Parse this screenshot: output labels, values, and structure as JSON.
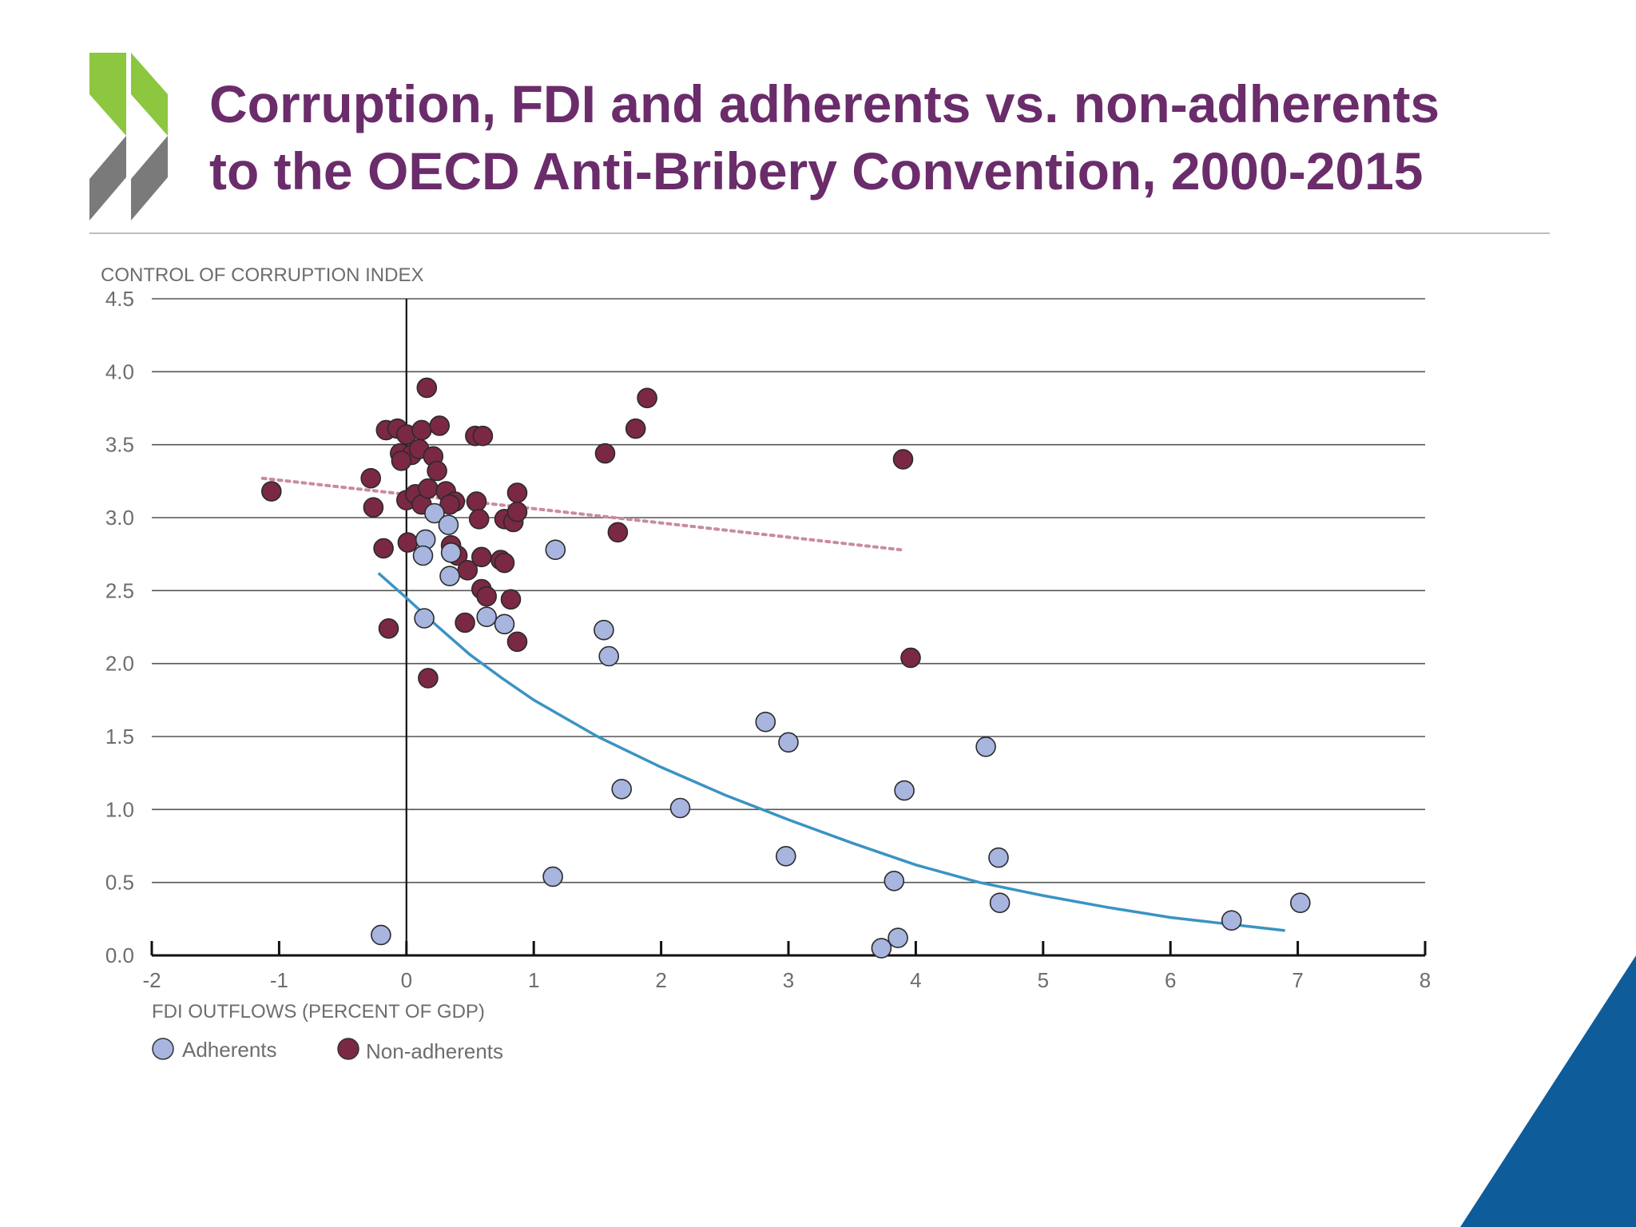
{
  "title": {
    "line1": "Corruption, FDI and adherents vs. non-adherents",
    "line2": "to the OECD Anti-Bribery Convention, 2000-2015"
  },
  "colors": {
    "title": "#6b2c6b",
    "chevron_green": "#8dc63f",
    "chevron_gray": "#7a7a7a",
    "corner_blue": "#0f5c9a",
    "adherents": "#a7b5df",
    "non_adherents": "#7a2843",
    "adherents_trend": "#3b93c3",
    "non_adherents_trend": "#c98aa5"
  },
  "chart_data": {
    "type": "scatter",
    "ylabel": "CONTROL OF CORRUPTION INDEX",
    "xlabel": "FDI OUTFLOWS (PERCENT OF GDP)",
    "xlim": [
      -2,
      8
    ],
    "ylim": [
      0,
      4.5
    ],
    "x_ticks": [
      "-2",
      "-1",
      "0",
      "1",
      "2",
      "3",
      "4",
      "5",
      "6",
      "7",
      "8"
    ],
    "y_ticks": [
      "0.0",
      "0.5",
      "1.0",
      "1.5",
      "2.0",
      "2.5",
      "3.0",
      "3.5",
      "4.0",
      "4.5"
    ],
    "grid": "horizontal",
    "legend": {
      "placement": "bottom-left",
      "entries": [
        "Adherents",
        "Non-adherents"
      ]
    },
    "series": [
      {
        "name": "Adherents",
        "points": [
          [
            0.22,
            3.03
          ],
          [
            0.33,
            2.95
          ],
          [
            0.15,
            2.85
          ],
          [
            0.13,
            2.74
          ],
          [
            0.35,
            2.76
          ],
          [
            0.34,
            2.6
          ],
          [
            0.14,
            2.31
          ],
          [
            0.63,
            2.32
          ],
          [
            0.77,
            2.27
          ],
          [
            1.17,
            2.78
          ],
          [
            1.55,
            2.23
          ],
          [
            1.59,
            2.05
          ],
          [
            2.82,
            1.6
          ],
          [
            3.0,
            1.46
          ],
          [
            4.55,
            1.43
          ],
          [
            1.69,
            1.14
          ],
          [
            2.15,
            1.01
          ],
          [
            3.91,
            1.13
          ],
          [
            2.98,
            0.68
          ],
          [
            4.65,
            0.67
          ],
          [
            1.15,
            0.54
          ],
          [
            3.83,
            0.51
          ],
          [
            4.66,
            0.36
          ],
          [
            7.02,
            0.36
          ],
          [
            6.48,
            0.24
          ],
          [
            -0.2,
            0.14
          ],
          [
            3.86,
            0.12
          ],
          [
            3.73,
            0.05
          ]
        ]
      },
      {
        "name": "Non-adherents",
        "points": [
          [
            0.16,
            3.89
          ],
          [
            1.89,
            3.82
          ],
          [
            -0.16,
            3.6
          ],
          [
            -0.07,
            3.61
          ],
          [
            0.0,
            3.57
          ],
          [
            0.12,
            3.6
          ],
          [
            0.26,
            3.63
          ],
          [
            0.54,
            3.56
          ],
          [
            0.6,
            3.56
          ],
          [
            1.8,
            3.61
          ],
          [
            -0.05,
            3.44
          ],
          [
            0.04,
            3.43
          ],
          [
            0.1,
            3.47
          ],
          [
            0.21,
            3.42
          ],
          [
            -0.04,
            3.39
          ],
          [
            1.56,
            3.44
          ],
          [
            3.9,
            3.4
          ],
          [
            0.24,
            3.32
          ],
          [
            -0.28,
            3.27
          ],
          [
            -1.06,
            3.18
          ],
          [
            0.0,
            3.12
          ],
          [
            0.07,
            3.16
          ],
          [
            0.12,
            3.09
          ],
          [
            0.17,
            3.2
          ],
          [
            0.31,
            3.18
          ],
          [
            0.38,
            3.11
          ],
          [
            0.55,
            3.11
          ],
          [
            0.87,
            3.17
          ],
          [
            -0.26,
            3.07
          ],
          [
            0.34,
            3.09
          ],
          [
            0.57,
            2.99
          ],
          [
            0.77,
            2.99
          ],
          [
            0.84,
            2.97
          ],
          [
            0.87,
            3.04
          ],
          [
            0.01,
            2.83
          ],
          [
            -0.18,
            2.79
          ],
          [
            0.35,
            2.81
          ],
          [
            0.4,
            2.74
          ],
          [
            0.59,
            2.73
          ],
          [
            0.74,
            2.71
          ],
          [
            0.77,
            2.69
          ],
          [
            1.66,
            2.9
          ],
          [
            0.48,
            2.64
          ],
          [
            0.59,
            2.51
          ],
          [
            0.63,
            2.46
          ],
          [
            0.82,
            2.44
          ],
          [
            -0.14,
            2.24
          ],
          [
            0.46,
            2.28
          ],
          [
            0.87,
            2.15
          ],
          [
            3.96,
            2.04
          ],
          [
            0.17,
            1.9
          ]
        ]
      }
    ],
    "trendlines": [
      {
        "series": "Adherents",
        "style": "solid",
        "points": [
          [
            -0.22,
            2.62
          ],
          [
            0.0,
            2.45
          ],
          [
            0.25,
            2.25
          ],
          [
            0.5,
            2.06
          ],
          [
            0.75,
            1.9
          ],
          [
            1.0,
            1.75
          ],
          [
            1.5,
            1.5
          ],
          [
            2.0,
            1.29
          ],
          [
            2.5,
            1.1
          ],
          [
            3.0,
            0.93
          ],
          [
            3.5,
            0.77
          ],
          [
            4.0,
            0.62
          ],
          [
            4.5,
            0.5
          ],
          [
            5.0,
            0.41
          ],
          [
            5.5,
            0.33
          ],
          [
            6.0,
            0.26
          ],
          [
            6.5,
            0.21
          ],
          [
            6.9,
            0.17
          ]
        ]
      },
      {
        "series": "Non-adherents",
        "style": "dotted",
        "points": [
          [
            -1.13,
            3.27
          ],
          [
            3.88,
            2.78
          ]
        ]
      }
    ]
  }
}
